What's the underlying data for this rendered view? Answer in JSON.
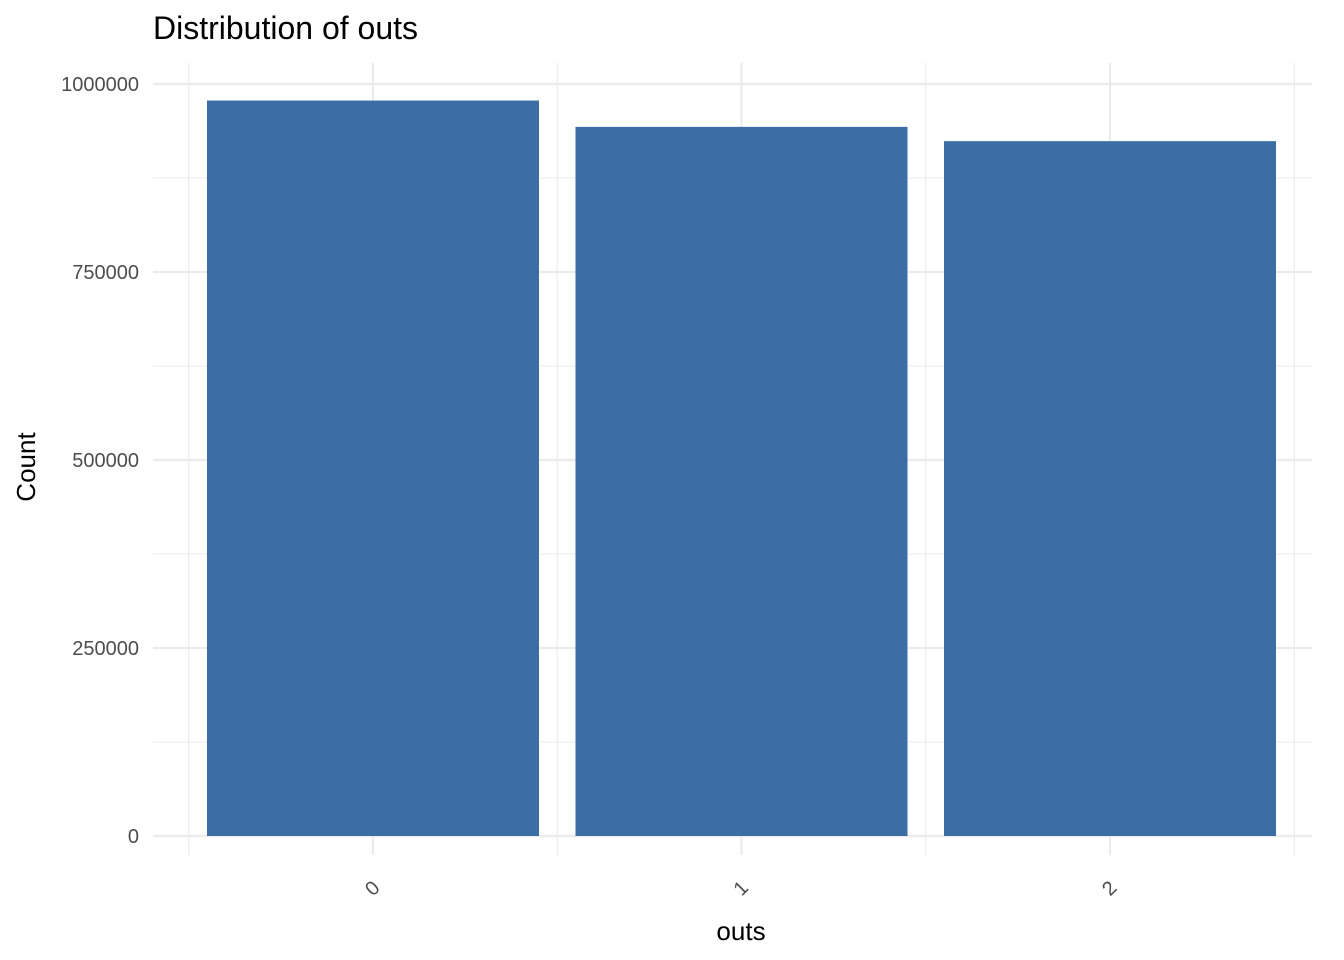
{
  "chart_data": {
    "type": "bar",
    "title": "Distribution of outs",
    "xlabel": "outs",
    "ylabel": "Count",
    "categories": [
      "0",
      "1",
      "2"
    ],
    "values": [
      978000,
      943000,
      924000
    ],
    "ylim": [
      0,
      1000000
    ],
    "y_ticks": [
      0,
      250000,
      500000,
      750000,
      1000000
    ],
    "y_tick_labels": [
      "0",
      "250000",
      "500000",
      "750000",
      "1000000"
    ],
    "x_tick_rotation": "45° diagonal",
    "grid": true,
    "legend": "none",
    "colors": {
      "bar": "#3a6ea5",
      "grid": "#ebebeb",
      "background": "#ffffff"
    }
  }
}
